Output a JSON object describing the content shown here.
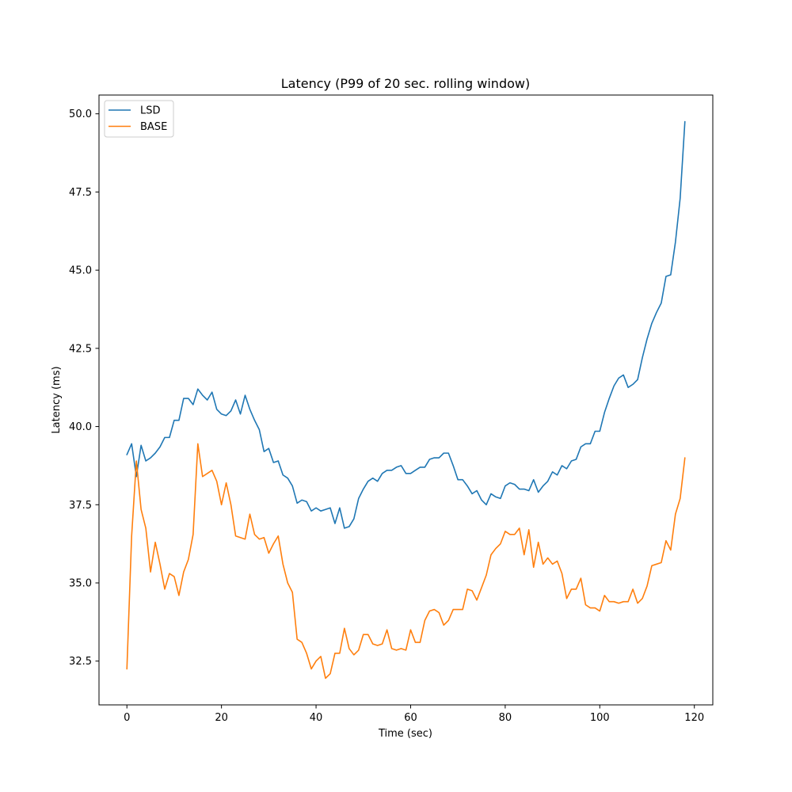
{
  "chart_data": {
    "type": "line",
    "title": "Latency (P99 of 20 sec. rolling window)",
    "xlabel": "Time (sec)",
    "ylabel": "Latency (ms)",
    "xlim": [
      -5.9,
      123.9
    ],
    "ylim": [
      31.1,
      50.6
    ],
    "xticks": [
      0,
      20,
      40,
      60,
      80,
      100,
      120
    ],
    "xtick_labels": [
      "0",
      "20",
      "40",
      "60",
      "80",
      "100",
      "120"
    ],
    "yticks": [
      32.5,
      35.0,
      37.5,
      40.0,
      42.5,
      45.0,
      47.5,
      50.0
    ],
    "ytick_labels": [
      "32.5",
      "35.0",
      "37.5",
      "40.0",
      "42.5",
      "45.0",
      "47.5",
      "50.0"
    ],
    "grid": false,
    "legend_position": "top-left",
    "series": [
      {
        "name": "LSD",
        "color": "#1f77b4",
        "x": [
          0,
          1,
          2,
          3,
          4,
          5,
          6,
          7,
          8,
          9,
          10,
          11,
          12,
          13,
          14,
          15,
          16,
          17,
          18,
          19,
          20,
          21,
          22,
          23,
          24,
          25,
          26,
          27,
          28,
          29,
          30,
          31,
          32,
          33,
          34,
          35,
          36,
          37,
          38,
          39,
          40,
          41,
          42,
          43,
          44,
          45,
          46,
          47,
          48,
          49,
          50,
          51,
          52,
          53,
          54,
          55,
          56,
          57,
          58,
          59,
          60,
          61,
          62,
          63,
          64,
          65,
          66,
          67,
          68,
          69,
          70,
          71,
          72,
          73,
          74,
          75,
          76,
          77,
          78,
          79,
          80,
          81,
          82,
          83,
          84,
          85,
          86,
          87,
          88,
          89,
          90,
          91,
          92,
          93,
          94,
          95,
          96,
          97,
          98,
          99,
          100,
          101,
          102,
          103,
          104,
          105,
          106,
          107,
          108,
          109,
          110,
          111,
          112,
          113,
          114,
          115,
          116,
          117,
          118
        ],
        "y": [
          39.1,
          39.45,
          38.4,
          39.4,
          38.9,
          39.0,
          39.15,
          39.35,
          39.65,
          39.65,
          40.2,
          40.2,
          40.9,
          40.9,
          40.7,
          41.2,
          41.0,
          40.85,
          41.1,
          40.55,
          40.4,
          40.35,
          40.5,
          40.85,
          40.4,
          41.0,
          40.55,
          40.2,
          39.9,
          39.2,
          39.3,
          38.85,
          38.9,
          38.45,
          38.35,
          38.1,
          37.55,
          37.65,
          37.6,
          37.3,
          37.4,
          37.3,
          37.35,
          37.4,
          36.9,
          37.4,
          36.75,
          36.8,
          37.05,
          37.7,
          38.0,
          38.25,
          38.35,
          38.25,
          38.5,
          38.6,
          38.6,
          38.7,
          38.75,
          38.5,
          38.5,
          38.6,
          38.7,
          38.7,
          38.95,
          39.0,
          39.0,
          39.15,
          39.15,
          38.75,
          38.3,
          38.3,
          38.1,
          37.85,
          37.95,
          37.65,
          37.5,
          37.85,
          37.75,
          37.7,
          38.1,
          38.2,
          38.15,
          38.0,
          38.0,
          37.95,
          38.3,
          37.9,
          38.1,
          38.25,
          38.55,
          38.45,
          38.75,
          38.65,
          38.9,
          38.95,
          39.35,
          39.45,
          39.45,
          39.85,
          39.85,
          40.45,
          40.9,
          41.3,
          41.55,
          41.65,
          41.25,
          41.35,
          41.5,
          42.2,
          42.8,
          43.3,
          43.65,
          43.95,
          44.8,
          44.85,
          45.9,
          47.3,
          49.75
        ]
      },
      {
        "name": "BASE",
        "color": "#ff7f0e",
        "x": [
          0,
          1,
          2,
          3,
          4,
          5,
          6,
          7,
          8,
          9,
          10,
          11,
          12,
          13,
          14,
          15,
          16,
          17,
          18,
          19,
          20,
          21,
          22,
          23,
          24,
          25,
          26,
          27,
          28,
          29,
          30,
          31,
          32,
          33,
          34,
          35,
          36,
          37,
          38,
          39,
          40,
          41,
          42,
          43,
          44,
          45,
          46,
          47,
          48,
          49,
          50,
          51,
          52,
          53,
          54,
          55,
          56,
          57,
          58,
          59,
          60,
          61,
          62,
          63,
          64,
          65,
          66,
          67,
          68,
          69,
          70,
          71,
          72,
          73,
          74,
          75,
          76,
          77,
          78,
          79,
          80,
          81,
          82,
          83,
          84,
          85,
          86,
          87,
          88,
          89,
          90,
          91,
          92,
          93,
          94,
          95,
          96,
          97,
          98,
          99,
          100,
          101,
          102,
          103,
          104,
          105,
          106,
          107,
          108,
          109,
          110,
          111,
          112,
          113,
          114,
          115,
          116,
          117,
          118
        ],
        "y": [
          32.25,
          36.5,
          38.9,
          37.35,
          36.75,
          35.35,
          36.3,
          35.6,
          34.8,
          35.3,
          35.2,
          34.6,
          35.35,
          35.75,
          36.55,
          39.45,
          38.4,
          38.5,
          38.6,
          38.25,
          37.5,
          38.2,
          37.5,
          36.5,
          36.45,
          36.4,
          37.2,
          36.55,
          36.4,
          36.45,
          35.95,
          36.25,
          36.5,
          35.6,
          35.0,
          34.7,
          33.2,
          33.1,
          32.75,
          32.25,
          32.5,
          32.65,
          31.95,
          32.1,
          32.75,
          32.75,
          33.55,
          32.9,
          32.7,
          32.85,
          33.35,
          33.35,
          33.05,
          33.0,
          33.05,
          33.5,
          32.9,
          32.85,
          32.9,
          32.85,
          33.5,
          33.1,
          33.1,
          33.8,
          34.1,
          34.15,
          34.05,
          33.65,
          33.8,
          34.15,
          34.15,
          34.15,
          34.8,
          34.75,
          34.45,
          34.85,
          35.25,
          35.9,
          36.1,
          36.25,
          36.65,
          36.55,
          36.55,
          36.75,
          35.9,
          36.7,
          35.5,
          36.3,
          35.6,
          35.8,
          35.6,
          35.7,
          35.3,
          34.5,
          34.8,
          34.8,
          35.15,
          34.3,
          34.2,
          34.2,
          34.1,
          34.6,
          34.4,
          34.4,
          34.35,
          34.4,
          34.4,
          34.8,
          34.35,
          34.5,
          34.9,
          35.55,
          35.6,
          35.65,
          36.35,
          36.05,
          37.2,
          37.7,
          39.0
        ]
      }
    ]
  }
}
